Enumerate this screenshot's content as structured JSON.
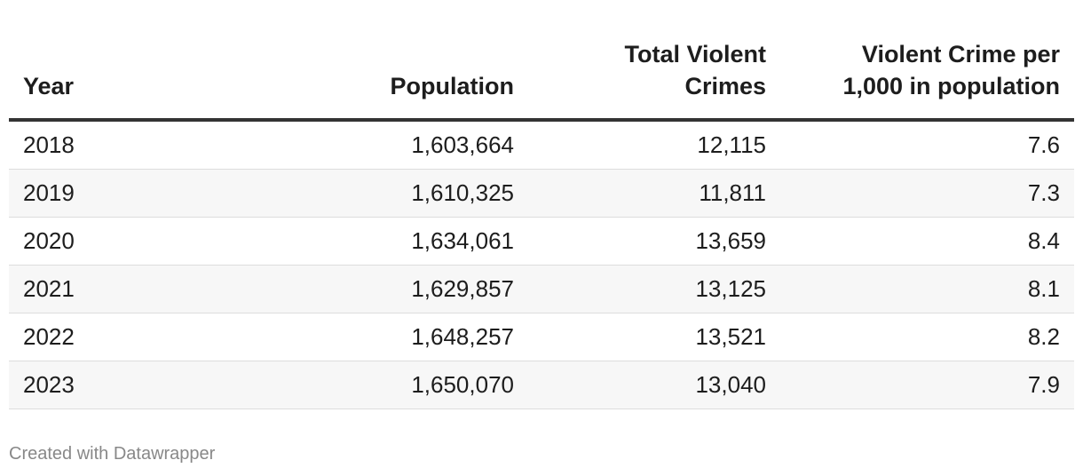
{
  "table": {
    "header": [
      "Year",
      "Population",
      "Total Violent Crimes",
      "Violent Crime per 1,000 in population"
    ],
    "rows": [
      [
        "2018",
        "1,603,664",
        "12,115",
        "7.6"
      ],
      [
        "2019",
        "1,610,325",
        "11,811",
        "7.3"
      ],
      [
        "2020",
        "1,634,061",
        "13,659",
        "8.4"
      ],
      [
        "2021",
        "1,629,857",
        "13,125",
        "8.1"
      ],
      [
        "2022",
        "1,648,257",
        "13,521",
        "8.2"
      ],
      [
        "2023",
        "1,650,070",
        "13,040",
        "7.9"
      ]
    ]
  },
  "footer": "Created with Datawrapper"
}
